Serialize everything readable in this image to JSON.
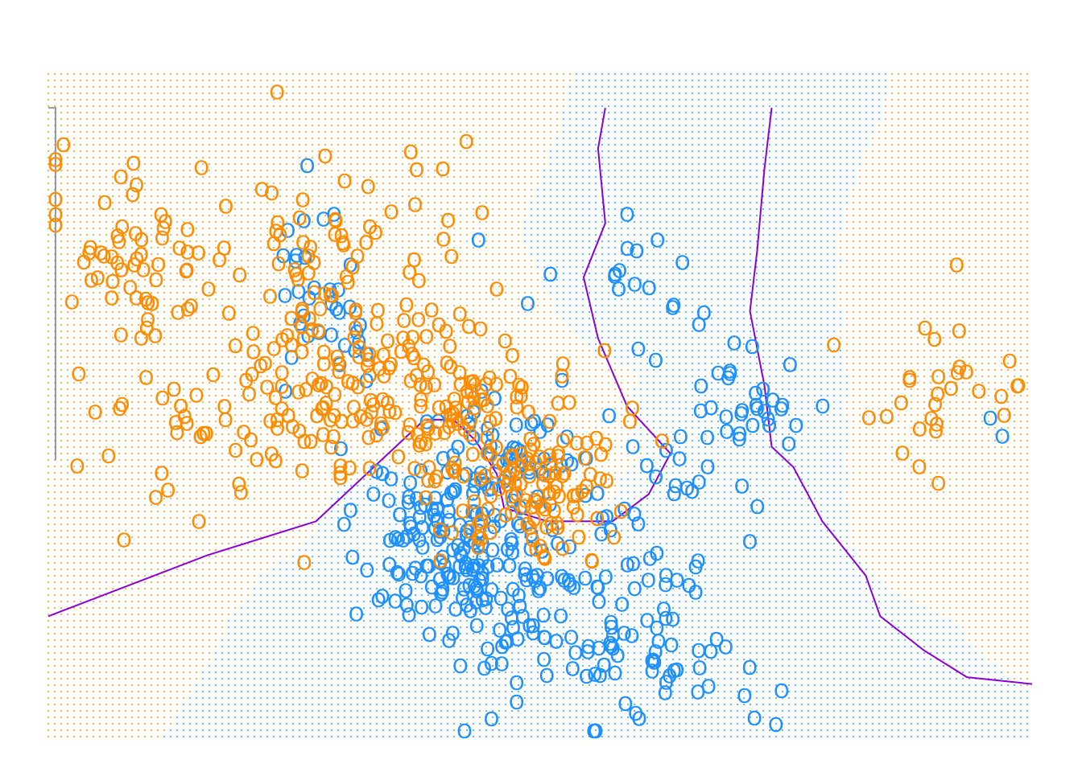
{
  "chart_data": {
    "type": "scatter",
    "title": "",
    "xlabel": "",
    "ylabel": "",
    "xlim": [
      -2.6,
      4.2
    ],
    "ylim": [
      -2.0,
      2.9
    ],
    "grid": false,
    "legend": "none",
    "marker_text": "O",
    "colors": {
      "class_0": "#1E90FF",
      "class_1": "#FF8C00",
      "knn_boundary": "#999999",
      "bayes_boundary": "#8B00D8"
    },
    "class_clusters": {
      "class_0": [
        {
          "center": [
            0.1,
            -0.55
          ],
          "sd": [
            0.28,
            0.35
          ],
          "n": 110
        },
        {
          "center": [
            0.8,
            -0.9
          ],
          "sd": [
            0.45,
            0.45
          ],
          "n": 110
        },
        {
          "center": [
            1.7,
            -1.3
          ],
          "sd": [
            0.35,
            0.35
          ],
          "n": 55
        },
        {
          "center": [
            0.55,
            0.05
          ],
          "sd": [
            0.35,
            0.3
          ],
          "n": 60
        },
        {
          "center": [
            2.1,
            0.35
          ],
          "sd": [
            0.35,
            0.3
          ],
          "n": 45
        },
        {
          "center": [
            -0.65,
            1.35
          ],
          "sd": [
            0.2,
            0.45
          ],
          "n": 35
        },
        {
          "center": [
            1.4,
            1.2
          ],
          "sd": [
            0.4,
            0.3
          ],
          "n": 18
        },
        {
          "center": [
            4.0,
            0.25
          ],
          "sd": [
            0.06,
            0.06
          ],
          "n": 2
        }
      ],
      "class_1": [
        {
          "center": [
            -2.0,
            1.6
          ],
          "sd": [
            0.35,
            0.35
          ],
          "n": 60
        },
        {
          "center": [
            -0.75,
            1.1
          ],
          "sd": [
            0.4,
            0.55
          ],
          "n": 80
        },
        {
          "center": [
            -0.2,
            0.55
          ],
          "sd": [
            0.5,
            0.3
          ],
          "n": 110
        },
        {
          "center": [
            0.65,
            0.1
          ],
          "sd": [
            0.35,
            0.32
          ],
          "n": 100
        },
        {
          "center": [
            0.8,
            -0.35
          ],
          "sd": [
            0.3,
            0.2
          ],
          "n": 40
        },
        {
          "center": [
            -1.5,
            0.3
          ],
          "sd": [
            0.6,
            0.3
          ],
          "n": 40
        },
        {
          "center": [
            3.55,
            0.5
          ],
          "sd": [
            0.35,
            0.35
          ],
          "n": 30
        },
        {
          "center": [
            -0.1,
            1.85
          ],
          "sd": [
            0.35,
            0.35
          ],
          "n": 25
        }
      ]
    },
    "knn_boundary_path": [
      [
        -2.6,
        2.65
      ],
      [
        -2.55,
        2.65
      ],
      [
        -2.55,
        1.5
      ],
      [
        -2.55,
        0.05
      ]
    ],
    "bayes_boundary": [
      [
        -2.6,
        -1.1
      ],
      [
        -1.5,
        -0.65
      ],
      [
        -0.75,
        -0.4
      ],
      [
        -0.4,
        -0.05
      ],
      [
        0.0,
        0.35
      ],
      [
        0.2,
        0.35
      ],
      [
        0.35,
        0.2
      ],
      [
        0.5,
        -0.05
      ],
      [
        0.55,
        -0.3
      ],
      [
        0.85,
        -0.4
      ],
      [
        1.3,
        -0.4
      ],
      [
        1.55,
        -0.2
      ],
      [
        1.7,
        0.1
      ],
      [
        1.4,
        0.45
      ],
      [
        1.2,
        0.95
      ],
      [
        1.1,
        1.4
      ],
      [
        1.25,
        1.8
      ],
      [
        1.2,
        2.35
      ],
      [
        1.25,
        2.65
      ]
    ],
    "bayes_boundary_2": [
      [
        2.4,
        2.65
      ],
      [
        2.35,
        2.2
      ],
      [
        2.3,
        1.6
      ],
      [
        2.25,
        1.15
      ],
      [
        2.35,
        0.6
      ],
      [
        2.4,
        0.15
      ],
      [
        2.55,
        0.0
      ],
      [
        2.75,
        -0.4
      ],
      [
        3.05,
        -0.8
      ],
      [
        3.15,
        -1.1
      ],
      [
        3.45,
        -1.35
      ],
      [
        3.75,
        -1.55
      ],
      [
        4.2,
        -1.6
      ]
    ]
  }
}
